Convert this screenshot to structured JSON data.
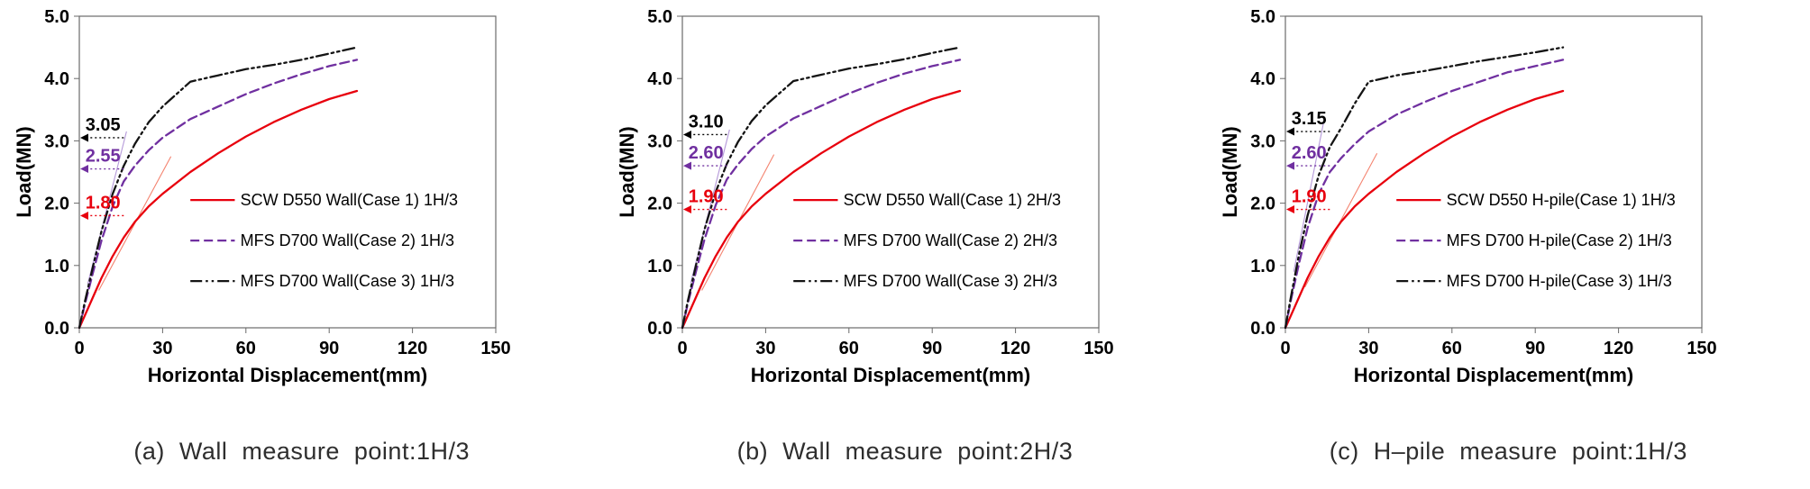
{
  "page": {
    "background": "#ffffff"
  },
  "captions": {
    "a": "(a)  Wall  measure  point:1H/3",
    "b": "(b)  Wall  measure  point:2H/3",
    "c": "(c)  H–pile  measure  point:1H/3"
  },
  "chart_data": [
    {
      "type": "line",
      "xlabel": "Horizontal Displacement(mm)",
      "ylabel": "Load(MN)",
      "xlim": [
        0,
        150
      ],
      "ylim": [
        0,
        5
      ],
      "xticks": [
        "0",
        "30",
        "60",
        "90",
        "120",
        "150"
      ],
      "yticks": [
        "0.0",
        "1.0",
        "2.0",
        "3.0",
        "4.0",
        "5.0"
      ],
      "x": [
        0,
        2,
        5,
        8,
        12,
        16,
        20,
        25,
        30,
        40,
        50,
        60,
        70,
        80,
        90,
        100
      ],
      "series": [
        {
          "name": "SCW D550 Wall(Case 1) 1H/3",
          "color": "#e8000d",
          "style": "solid",
          "values": [
            0,
            0.2,
            0.5,
            0.8,
            1.15,
            1.45,
            1.7,
            1.95,
            2.15,
            2.5,
            2.8,
            3.07,
            3.3,
            3.5,
            3.67,
            3.8
          ]
        },
        {
          "name": "MFS D700 Wall(Case 2) 1H/3",
          "color": "#7030a0",
          "style": "dashed",
          "values": [
            0,
            0.38,
            0.9,
            1.4,
            1.95,
            2.35,
            2.6,
            2.85,
            3.05,
            3.35,
            3.55,
            3.75,
            3.92,
            4.07,
            4.2,
            4.3
          ]
        },
        {
          "name": "MFS D700 Wall(Case 3) 1H/3",
          "color": "#141414",
          "style": "dashdotdot",
          "values": [
            0,
            0.42,
            1.0,
            1.55,
            2.15,
            2.6,
            2.95,
            3.3,
            3.55,
            3.95,
            4.05,
            4.15,
            4.22,
            4.3,
            4.4,
            4.5
          ]
        }
      ],
      "annotations": [
        {
          "label": "3.05",
          "value": 3.05,
          "color": "#000000"
        },
        {
          "label": "2.55",
          "value": 2.55,
          "color": "#7030a0"
        },
        {
          "label": "1.80",
          "value": 1.8,
          "color": "#e8000d"
        }
      ],
      "guides": [
        {
          "color": "#f4836f",
          "x1": 7,
          "y1": 0.6,
          "x2": 33,
          "y2": 2.75
        },
        {
          "color": "#b599d9",
          "x1": 3,
          "y1": 0.7,
          "x2": 17,
          "y2": 3.15
        }
      ]
    },
    {
      "type": "line",
      "xlabel": "Horizontal Displacement(mm)",
      "ylabel": "Load(MN)",
      "xlim": [
        0,
        150
      ],
      "ylim": [
        0,
        5
      ],
      "xticks": [
        "0",
        "30",
        "60",
        "90",
        "120",
        "150"
      ],
      "yticks": [
        "0.0",
        "1.0",
        "2.0",
        "3.0",
        "4.0",
        "5.0"
      ],
      "x": [
        0,
        2,
        5,
        8,
        12,
        16,
        20,
        25,
        30,
        40,
        50,
        60,
        70,
        80,
        90,
        100
      ],
      "series": [
        {
          "name": "SCW D550 Wall(Case 1) 2H/3",
          "color": "#e8000d",
          "style": "solid",
          "values": [
            0,
            0.2,
            0.5,
            0.8,
            1.15,
            1.45,
            1.7,
            1.95,
            2.15,
            2.5,
            2.8,
            3.07,
            3.3,
            3.5,
            3.67,
            3.8
          ]
        },
        {
          "name": "MFS D700 Wall(Case 2) 2H/3",
          "color": "#7030a0",
          "style": "dashed",
          "values": [
            0,
            0.4,
            0.92,
            1.42,
            1.97,
            2.38,
            2.62,
            2.87,
            3.07,
            3.36,
            3.56,
            3.76,
            3.93,
            4.08,
            4.2,
            4.3
          ]
        },
        {
          "name": "MFS D700 Wall(Case 3) 2H/3",
          "color": "#141414",
          "style": "dashdotdot",
          "values": [
            0,
            0.44,
            1.02,
            1.58,
            2.18,
            2.63,
            2.98,
            3.32,
            3.57,
            3.96,
            4.06,
            4.16,
            4.23,
            4.31,
            4.41,
            4.5
          ]
        }
      ],
      "annotations": [
        {
          "label": "3.10",
          "value": 3.1,
          "color": "#000000"
        },
        {
          "label": "2.60",
          "value": 2.6,
          "color": "#7030a0"
        },
        {
          "label": "1.90",
          "value": 1.9,
          "color": "#e8000d"
        }
      ],
      "guides": [
        {
          "color": "#f4836f",
          "x1": 7,
          "y1": 0.6,
          "x2": 33,
          "y2": 2.78
        },
        {
          "color": "#b599d9",
          "x1": 3,
          "y1": 0.72,
          "x2": 17,
          "y2": 3.18
        }
      ]
    },
    {
      "type": "line",
      "xlabel": "Horizontal Displacement(mm)",
      "ylabel": "Load(MN)",
      "xlim": [
        0,
        150
      ],
      "ylim": [
        0,
        5
      ],
      "xticks": [
        "0",
        "30",
        "60",
        "90",
        "120",
        "150"
      ],
      "yticks": [
        "0.0",
        "1.0",
        "2.0",
        "3.0",
        "4.0",
        "5.0"
      ],
      "x": [
        0,
        2,
        5,
        8,
        12,
        16,
        20,
        25,
        30,
        40,
        50,
        60,
        70,
        80,
        90,
        100
      ],
      "series": [
        {
          "name": "SCW D550 H-pile(Case 1) 1H/3",
          "color": "#e8000d",
          "style": "solid",
          "values": [
            0,
            0.2,
            0.5,
            0.8,
            1.15,
            1.45,
            1.7,
            1.95,
            2.15,
            2.5,
            2.8,
            3.07,
            3.3,
            3.5,
            3.67,
            3.8
          ]
        },
        {
          "name": "MFS D700 H-pile(Case 2) 1H/3",
          "color": "#7030a0",
          "style": "dashed",
          "values": [
            0,
            0.45,
            1.05,
            1.6,
            2.15,
            2.5,
            2.72,
            2.95,
            3.15,
            3.42,
            3.62,
            3.8,
            3.95,
            4.1,
            4.2,
            4.3
          ]
        },
        {
          "name": "MFS D700 H-pile(Case 3) 1H/3",
          "color": "#141414",
          "style": "dashdotdot",
          "values": [
            0,
            0.5,
            1.2,
            1.8,
            2.45,
            2.9,
            3.2,
            3.6,
            3.95,
            4.05,
            4.12,
            4.2,
            4.28,
            4.35,
            4.42,
            4.5
          ]
        }
      ],
      "annotations": [
        {
          "label": "3.15",
          "value": 3.15,
          "color": "#000000"
        },
        {
          "label": "2.60",
          "value": 2.6,
          "color": "#7030a0"
        },
        {
          "label": "1.90",
          "value": 1.9,
          "color": "#e8000d"
        }
      ],
      "guides": [
        {
          "color": "#f4836f",
          "x1": 7,
          "y1": 0.65,
          "x2": 33,
          "y2": 2.8
        },
        {
          "color": "#b599d9",
          "x1": 3,
          "y1": 0.9,
          "x2": 14,
          "y2": 3.35
        }
      ]
    }
  ]
}
